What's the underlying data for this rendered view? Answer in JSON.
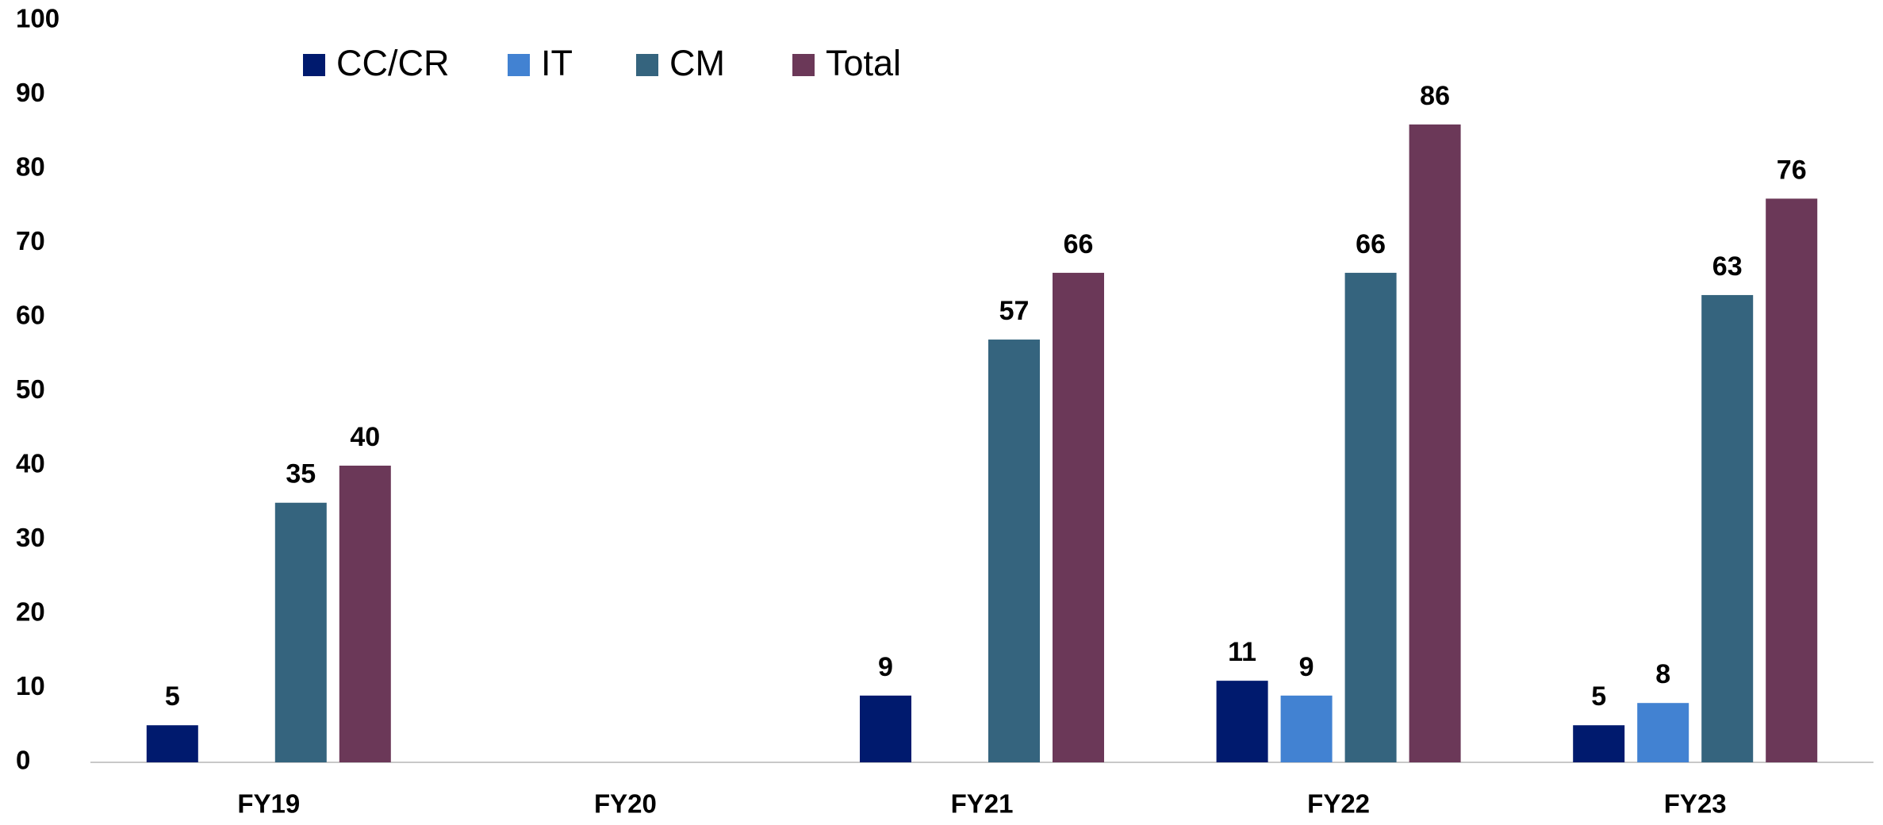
{
  "chart_data": {
    "type": "bar",
    "categories": [
      "FY19",
      "FY20",
      "FY21",
      "FY22",
      "FY23"
    ],
    "series": [
      {
        "name": "CC/CR",
        "color": "#001a6e",
        "values": [
          5,
          null,
          9,
          11,
          5
        ]
      },
      {
        "name": "IT",
        "color": "#4282d2",
        "values": [
          null,
          null,
          null,
          9,
          8
        ]
      },
      {
        "name": "CM",
        "color": "#35647e",
        "values": [
          35,
          null,
          57,
          66,
          63
        ]
      },
      {
        "name": "Total",
        "color": "#6b3858",
        "values": [
          40,
          null,
          66,
          86,
          76
        ]
      }
    ],
    "ylim": [
      0,
      100
    ],
    "yticks": [
      0,
      10,
      20,
      30,
      40,
      50,
      60,
      70,
      80,
      90,
      100
    ],
    "grid": false,
    "legend": "top"
  }
}
